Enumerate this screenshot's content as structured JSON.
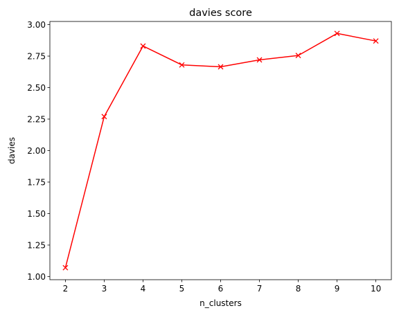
{
  "chart_data": {
    "type": "line",
    "title": "davies score",
    "xlabel": "n_clusters",
    "ylabel": "davies",
    "x": [
      2,
      3,
      4,
      5,
      6,
      7,
      8,
      9,
      10
    ],
    "series": [
      {
        "values": [
          1.07,
          2.27,
          2.83,
          2.68,
          2.665,
          2.72,
          2.755,
          2.93,
          2.87
        ],
        "color": "#ff0000",
        "marker": "x"
      }
    ],
    "xticks": [
      "2",
      "3",
      "4",
      "5",
      "6",
      "7",
      "8",
      "9",
      "10"
    ],
    "yticks": [
      "1.00",
      "1.25",
      "1.50",
      "1.75",
      "2.00",
      "2.25",
      "2.50",
      "2.75",
      "3.00"
    ],
    "xlim": [
      1.6,
      10.4
    ],
    "ylim": [
      0.975,
      3.025
    ],
    "grid": false,
    "legend": "none"
  }
}
